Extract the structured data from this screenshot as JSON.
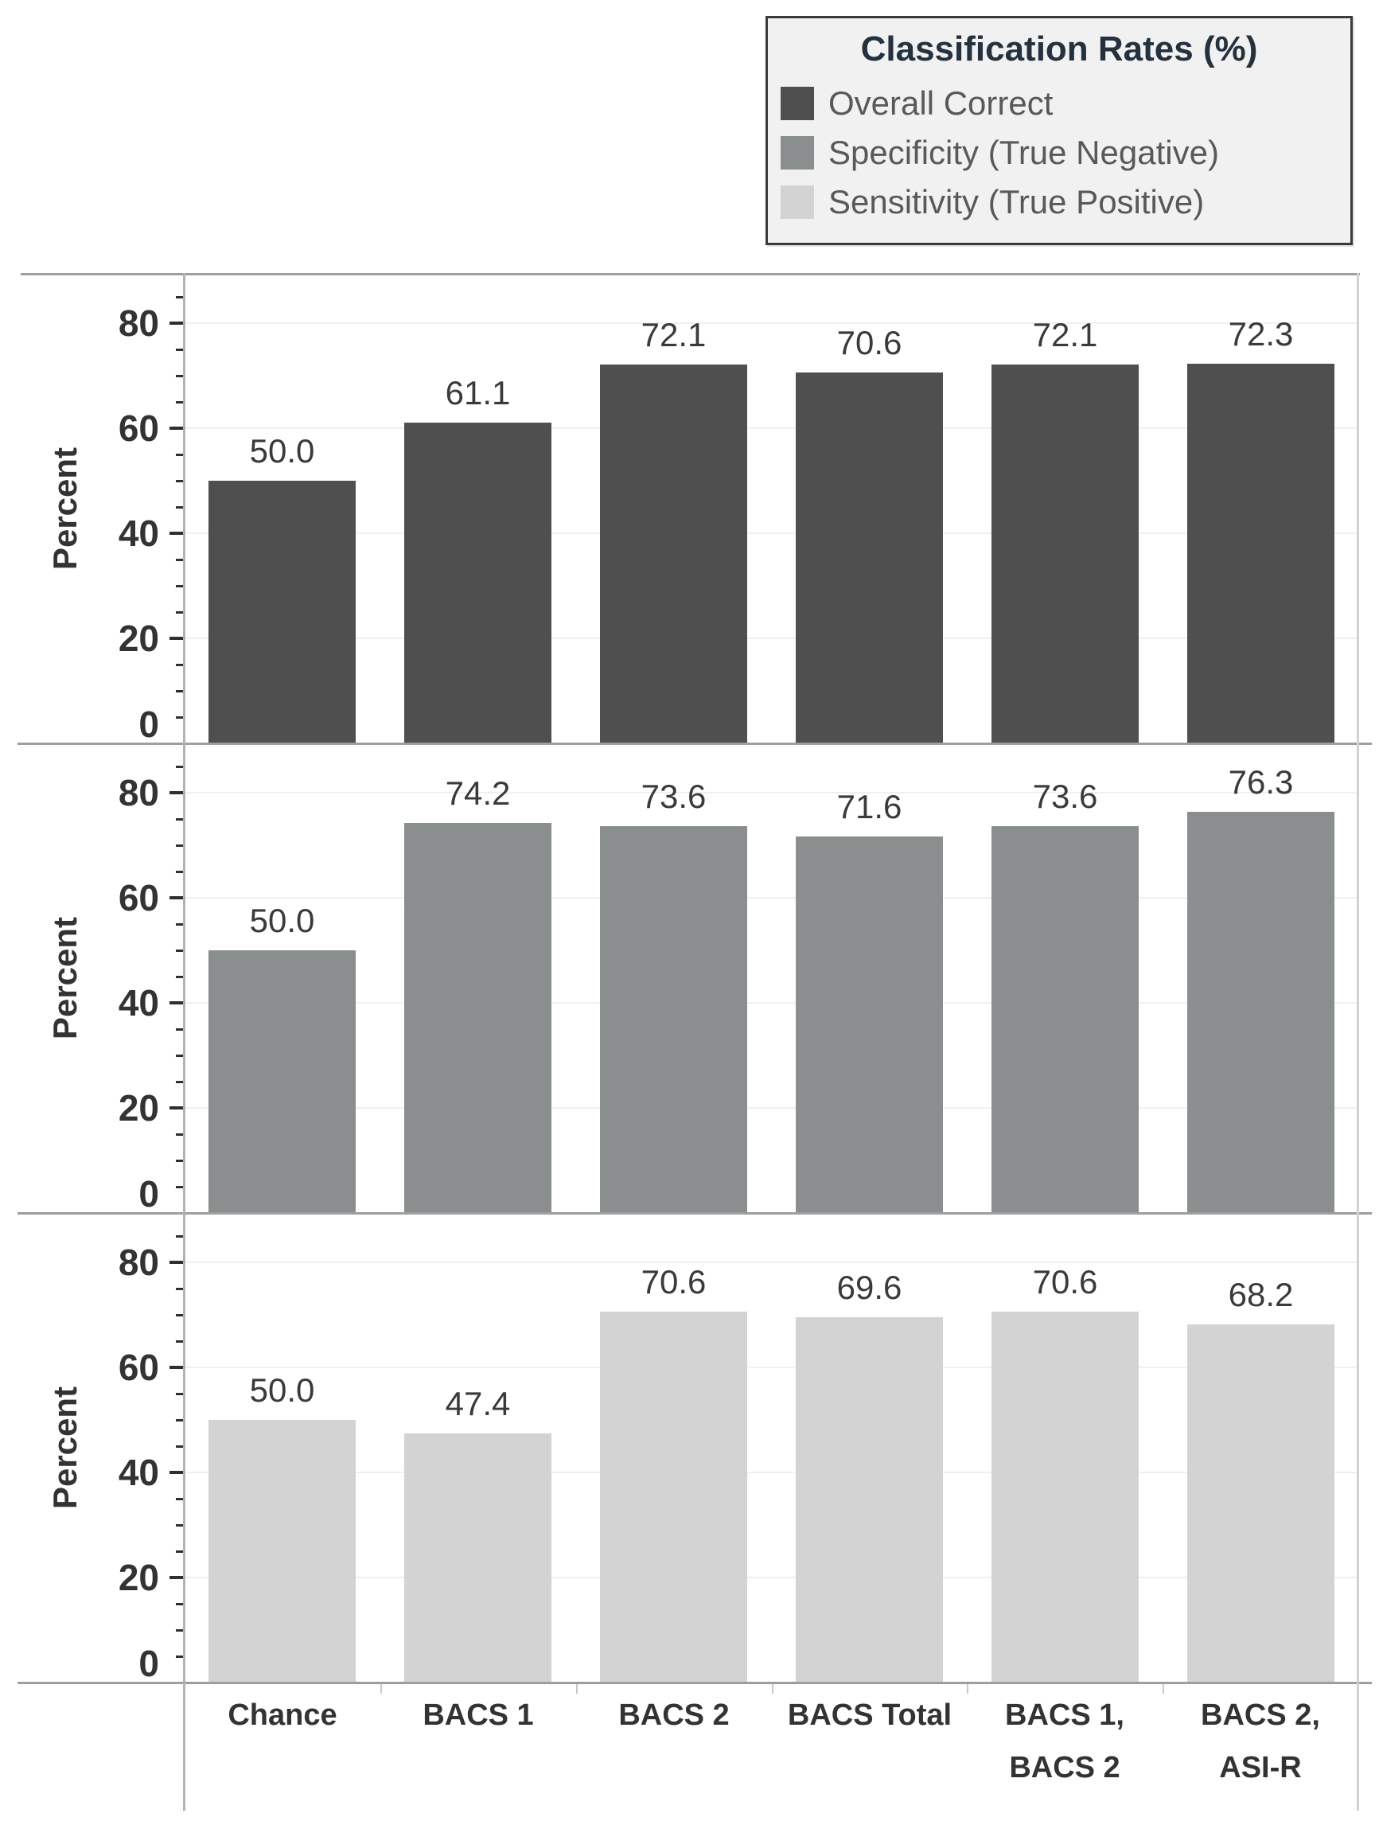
{
  "legend": {
    "title": "Classification Rates (%)",
    "items": [
      {
        "label": "Overall Correct",
        "color": "#4f4f4f"
      },
      {
        "label": "Specificity (True Negative)",
        "color": "#8a8e8e"
      },
      {
        "label": "Sensitivity (True Positive)",
        "color": "#d3d3d3"
      }
    ]
  },
  "chart_data": {
    "type": "bar",
    "layout": "three vertically stacked panels (small multiples), one per series, shared x categories",
    "title": "Classification Rates (%)",
    "categories": [
      "Chance",
      "BACS 1",
      "BACS 2",
      "BACS Total",
      "BACS 1,\nBACS 2",
      "BACS 2,\nASI-R"
    ],
    "series": [
      {
        "name": "Overall Correct",
        "color": "#4f4f4f",
        "values": [
          50.0,
          61.1,
          72.1,
          70.6,
          72.1,
          72.3
        ]
      },
      {
        "name": "Specificity (True Negative)",
        "color": "#8a8e8e",
        "values": [
          50.0,
          74.2,
          73.6,
          71.6,
          73.6,
          76.3
        ]
      },
      {
        "name": "Sensitivity (True Positive)",
        "color": "#d3d3d3",
        "values": [
          50.0,
          47.4,
          70.6,
          69.6,
          70.6,
          68.2
        ]
      }
    ],
    "xlabel": "",
    "ylabel": "Percent",
    "yticks": [
      0,
      20,
      40,
      60,
      80
    ],
    "minor_tick_step": 5,
    "ylim": [
      0,
      89.4
    ],
    "grid": true,
    "value_labels": "one decimal place above each bar",
    "legend_position": "top-right"
  },
  "styles": {
    "text_color": "#333333",
    "legend_title_color": "#24313f",
    "legend_item_color": "#595959",
    "legend_background": "#f1f1f1",
    "legend_border": "#3b3b3b",
    "axis_line_color": "#b3b3b3",
    "plot_border_color": "#d2d2d2",
    "panel_divider_color": "#9e9e9e",
    "grid_color": "#f0f0f0",
    "tick_color": "#2f2f2f",
    "boundary_tick_color": "#c9c9c9"
  }
}
